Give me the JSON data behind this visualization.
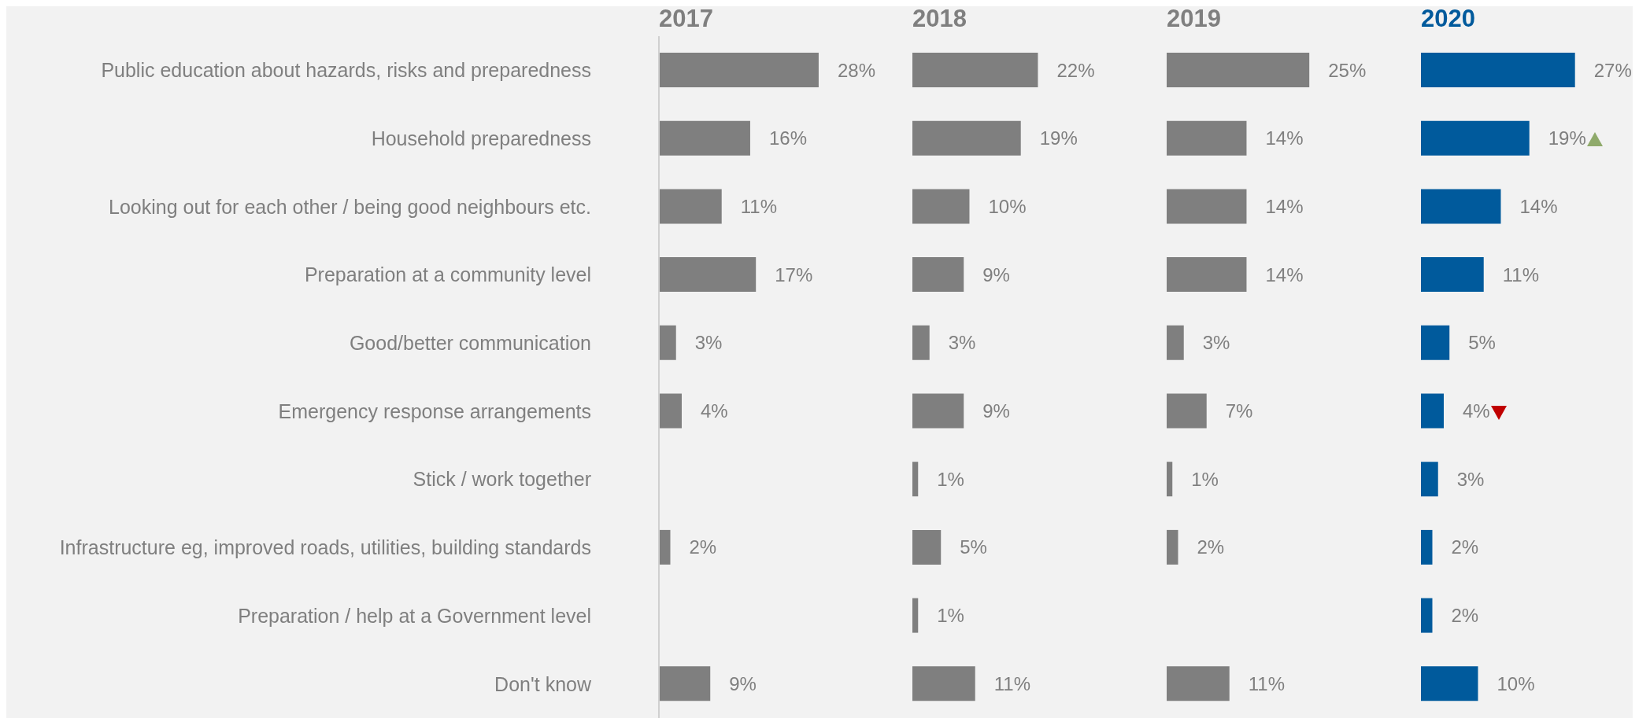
{
  "chart_data": [
    {
      "type": "bar",
      "orientation": "horizontal",
      "title": "2017",
      "tick_labels": "y",
      "categories": [
        "Public education about hazards, risks and preparedness",
        "Household preparedness",
        "Looking out for each other / being good neighbours etc.",
        "Preparation at a community level",
        "Good/better communication",
        "Emergency response arrangements",
        "Stick / work together",
        "Infrastructure eg, improved roads, utilities, building standards",
        "Preparation / help at a Government level",
        "Don't know"
      ],
      "values": [
        28,
        16,
        11,
        17,
        3,
        4,
        null,
        2,
        null,
        9
      ],
      "value_labels": [
        "28%",
        "16%",
        "11%",
        "17%",
        "3%",
        "4%",
        null,
        "2%",
        null,
        "9%"
      ],
      "color": "#7f7f7f"
    },
    {
      "type": "bar",
      "orientation": "horizontal",
      "title": "2018",
      "tick_labels": false,
      "values": [
        22,
        19,
        10,
        9,
        3,
        9,
        1,
        5,
        1,
        11
      ],
      "value_labels": [
        "22%",
        "19%",
        "10%",
        "9%",
        "3%",
        "9%",
        "1%",
        "5%",
        "1%",
        "11%"
      ],
      "color": "#7f7f7f"
    },
    {
      "type": "bar",
      "orientation": "horizontal",
      "title": "2019",
      "tick_labels": false,
      "values": [
        25,
        14,
        14,
        14,
        3,
        7,
        1,
        2,
        null,
        11
      ],
      "value_labels": [
        "25%",
        "14%",
        "14%",
        "14%",
        "3%",
        "7%",
        "1%",
        "2%",
        null,
        "11%"
      ],
      "color": "#7f7f7f"
    },
    {
      "type": "bar",
      "orientation": "horizontal",
      "title": "2020",
      "tick_labels": false,
      "values": [
        27,
        19,
        14,
        11,
        5,
        4,
        3,
        2,
        2,
        10
      ],
      "value_labels": [
        "27%",
        "19%",
        "14%",
        "11%",
        "5%",
        "4%",
        "3%",
        "2%",
        "2%",
        "10%"
      ],
      "color": "#005a9c"
    }
  ]
}
